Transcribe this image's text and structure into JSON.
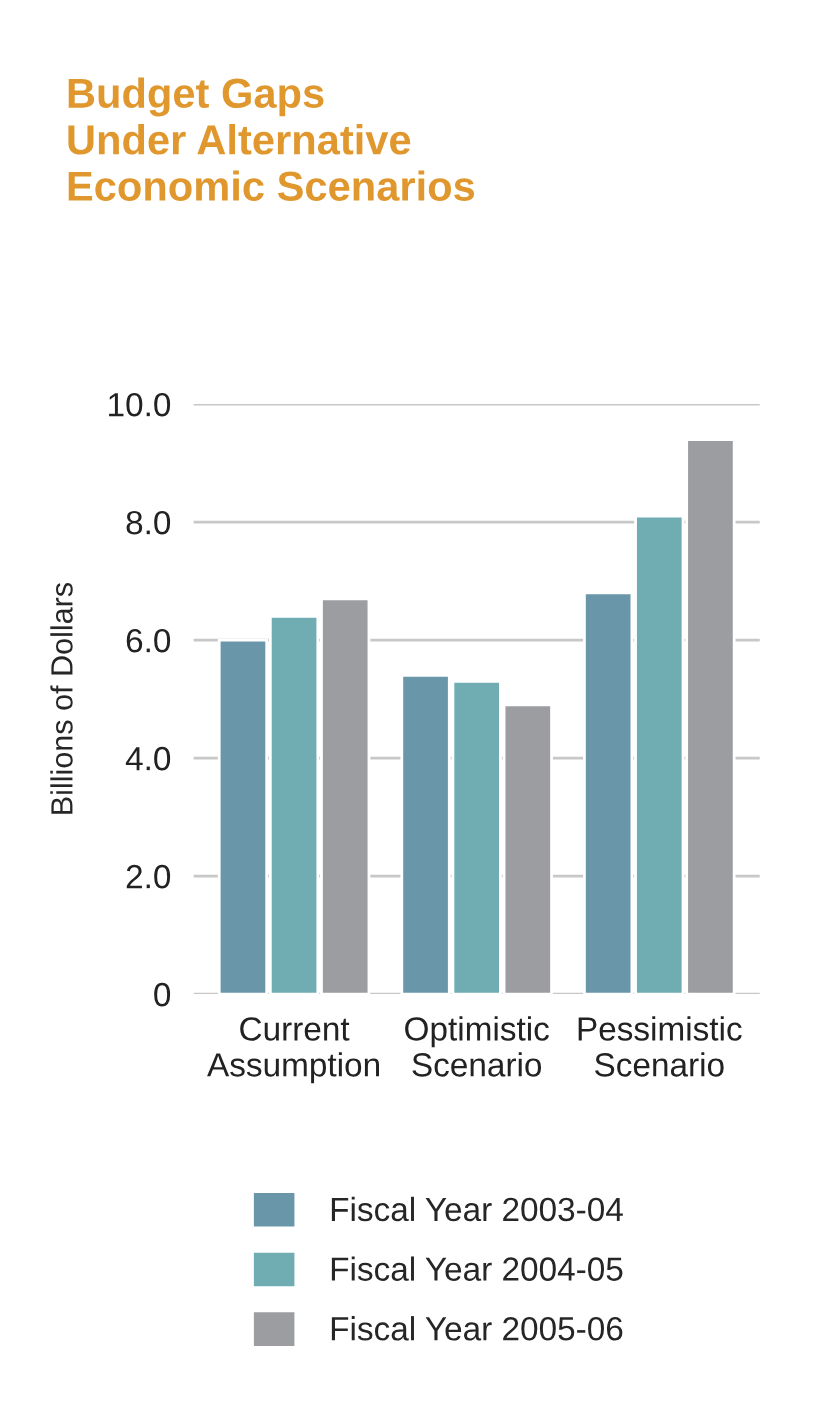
{
  "chart_data": {
    "type": "bar",
    "title": "Budget Gaps\nUnder Alternative\nEconomic Scenarios",
    "ylabel": "Billions of Dollars",
    "categories": [
      "Current\nAssumption",
      "Optimistic\nScenario",
      "Pessimistic\nScenario"
    ],
    "series": [
      {
        "name": "Fiscal Year 2003-04",
        "color": "#6a96aa",
        "values": [
          6.0,
          5.4,
          6.8
        ]
      },
      {
        "name": "Fiscal Year 2004-05",
        "color": "#70adb3",
        "values": [
          6.4,
          5.3,
          8.1
        ]
      },
      {
        "name": "Fiscal Year 2005-06",
        "color": "#9c9da1",
        "values": [
          6.7,
          4.9,
          9.4
        ]
      }
    ],
    "ylim": [
      0,
      10
    ],
    "yticks": [
      {
        "value": 0,
        "label": "0"
      },
      {
        "value": 2,
        "label": "2.0"
      },
      {
        "value": 4,
        "label": "4.0"
      },
      {
        "value": 6,
        "label": "6.0"
      },
      {
        "value": 8,
        "label": "8.0"
      },
      {
        "value": 10,
        "label": "10.0"
      }
    ],
    "grid": "y",
    "legend": "bottom"
  }
}
